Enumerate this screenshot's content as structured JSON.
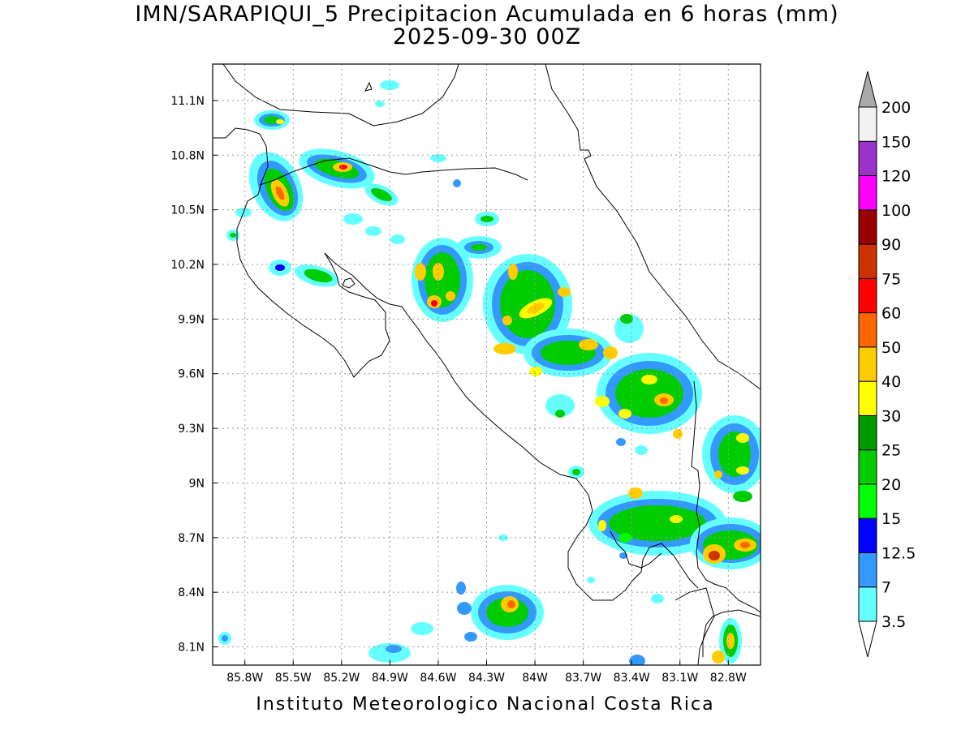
{
  "title": {
    "line1": "IMN/SARAPIQUI_5 Precipitacion Acumulada en 6 horas (mm)",
    "line2": "2025-09-30 00Z"
  },
  "footer": "Instituto Meteorologico Nacional Costa Rica",
  "map": {
    "lon_range": [
      -86.0,
      -82.6
    ],
    "lat_range": [
      8.0,
      11.3
    ],
    "lon_ticks": [
      "85.8W",
      "85.5W",
      "85.2W",
      "84.9W",
      "84.6W",
      "84.3W",
      "84W",
      "83.7W",
      "83.4W",
      "83.1W",
      "82.8W"
    ],
    "lat_ticks": [
      "8.1N",
      "8.4N",
      "8.7N",
      "9N",
      "9.3N",
      "9.6N",
      "9.9N",
      "10.2N",
      "10.5N",
      "10.8N",
      "11.1N"
    ],
    "grid": "dotted"
  },
  "colorbar": {
    "labels": [
      "3.5",
      "7",
      "12.5",
      "15",
      "20",
      "25",
      "30",
      "40",
      "50",
      "60",
      "75",
      "90",
      "100",
      "120",
      "150",
      "200"
    ],
    "colors": [
      "#66ffff",
      "#3399ff",
      "#0000ff",
      "#00ff00",
      "#00cc00",
      "#009900",
      "#ffff00",
      "#ffcc00",
      "#ff6600",
      "#ff0000",
      "#cc3300",
      "#990000",
      "#ff00ff",
      "#9933cc",
      "#f2f2f2"
    ],
    "under_color": "#ffffff",
    "over_color": "#aaaaaa"
  }
}
